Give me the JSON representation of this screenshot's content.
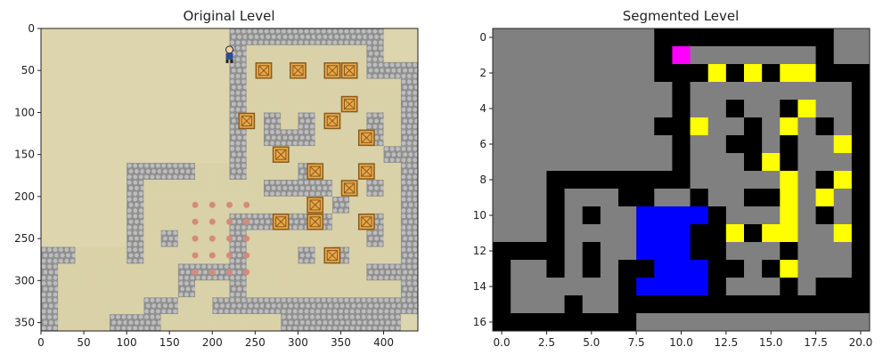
{
  "chart_data": [
    {
      "type": "image",
      "title": "Original Level",
      "x_ticks": [
        0,
        50,
        100,
        150,
        200,
        250,
        300,
        350,
        400
      ],
      "y_ticks": [
        0,
        50,
        100,
        150,
        200,
        250,
        300,
        350
      ],
      "xlim": [
        0,
        440
      ],
      "ylim": [
        360,
        0
      ],
      "tile_size": 20,
      "colors": {
        "floor": "#d9d1a8",
        "wall": "#8f8f8f",
        "wall_light": "#bdbdbd",
        "background": "#ddd5ad",
        "box": "#e8a84a",
        "goal": "#d48a7a",
        "player": "#2a4c9a"
      },
      "walls_rows": [
        "...........#########..",
        "...........#.......#..",
        "...........#.......###",
        "...........#.........#",
        "...........#.........#",
        "...........#.#.#...#.#",
        "...........#.###...#.#",
        "...........#........##",
        ".....####..#...#.....#",
        ".....#.......####..#.#",
        ".....#...........#...#",
        ".....#.....######..#.#",
        ".....#.#...#.......#.#",
        "##...#.....#...#.#...#",
        "#.......####.......###",
        "#.......#..#.........#",
        "#.....##..############",
        "#...###.......#######.",
        "######..............."
      ],
      "boxes": [
        [
          250,
          40
        ],
        [
          290,
          40
        ],
        [
          330,
          40
        ],
        [
          350,
          40
        ],
        [
          350,
          80
        ],
        [
          230,
          100
        ],
        [
          330,
          100
        ],
        [
          370,
          120
        ],
        [
          270,
          140
        ],
        [
          310,
          160
        ],
        [
          370,
          160
        ],
        [
          350,
          180
        ],
        [
          310,
          200
        ],
        [
          270,
          220
        ],
        [
          310,
          220
        ],
        [
          370,
          220
        ],
        [
          330,
          260
        ]
      ],
      "goals": [
        [
          180,
          210
        ],
        [
          200,
          210
        ],
        [
          220,
          210
        ],
        [
          240,
          210
        ],
        [
          180,
          230
        ],
        [
          200,
          230
        ],
        [
          220,
          230
        ],
        [
          240,
          230
        ],
        [
          180,
          250
        ],
        [
          200,
          250
        ],
        [
          220,
          250
        ],
        [
          240,
          250
        ],
        [
          180,
          270
        ],
        [
          200,
          270
        ],
        [
          220,
          270
        ],
        [
          240,
          270
        ],
        [
          180,
          290
        ],
        [
          200,
          290
        ],
        [
          220,
          290
        ],
        [
          240,
          290
        ]
      ],
      "player": [
        210,
        20
      ]
    },
    {
      "type": "heatmap",
      "title": "Segmented Level",
      "x_ticks": [
        "0.0",
        "2.5",
        "5.0",
        "7.5",
        "10.0",
        "12.5",
        "15.0",
        "17.5",
        "20.0"
      ],
      "x_tick_values": [
        0,
        2.5,
        5,
        7.5,
        10,
        12.5,
        15,
        17.5,
        20
      ],
      "y_ticks": [
        0,
        2,
        4,
        6,
        8,
        10,
        12,
        14,
        16
      ],
      "xlim": [
        -0.5,
        20.5
      ],
      "ylim": [
        16.5,
        -0.5
      ],
      "legend": {
        "G": "#808080",
        "K": "#000000",
        "Y": "#ffff00",
        "B": "#0000ff",
        "M": "#ff00ff"
      },
      "grid": [
        "GGGGGGGGGKKKKKKKKKKGG",
        "GGGGGGGGGKMGGGGGGGKGG",
        "GGGGGGGGGKKKYKYKYYKKK",
        "GGGGGGGGGGKGGGGGGGGGK",
        "GGGGGGGGGGKGGKGGKYGGK",
        "GGGGGGGGGKKYGGKGYGKGK",
        "GGGGGGGGGGKGGKKGKGGYK",
        "GGGGGGGGGGKGGGKYKGGGK",
        "GGGKKKKKKKKGGGGGYGKYK",
        "GGGKGGGKKGGKGGKKYGYGK",
        "GGGKGKGGBBBBKGGGYGKGK",
        "GGGKGGGGBBBKKYKYYGGYK",
        "KKKKGKGGBBBKKGGGKGGGK",
        "KGGKGKGKKBBBKKGKYGGGK",
        "KGGGGGGKBBBBKGGGKGKKK",
        "KGGGKGGKKKKKKKKKKKKKK",
        "KKKKKKKKGGGGGGGGGGGGG"
      ]
    }
  ]
}
